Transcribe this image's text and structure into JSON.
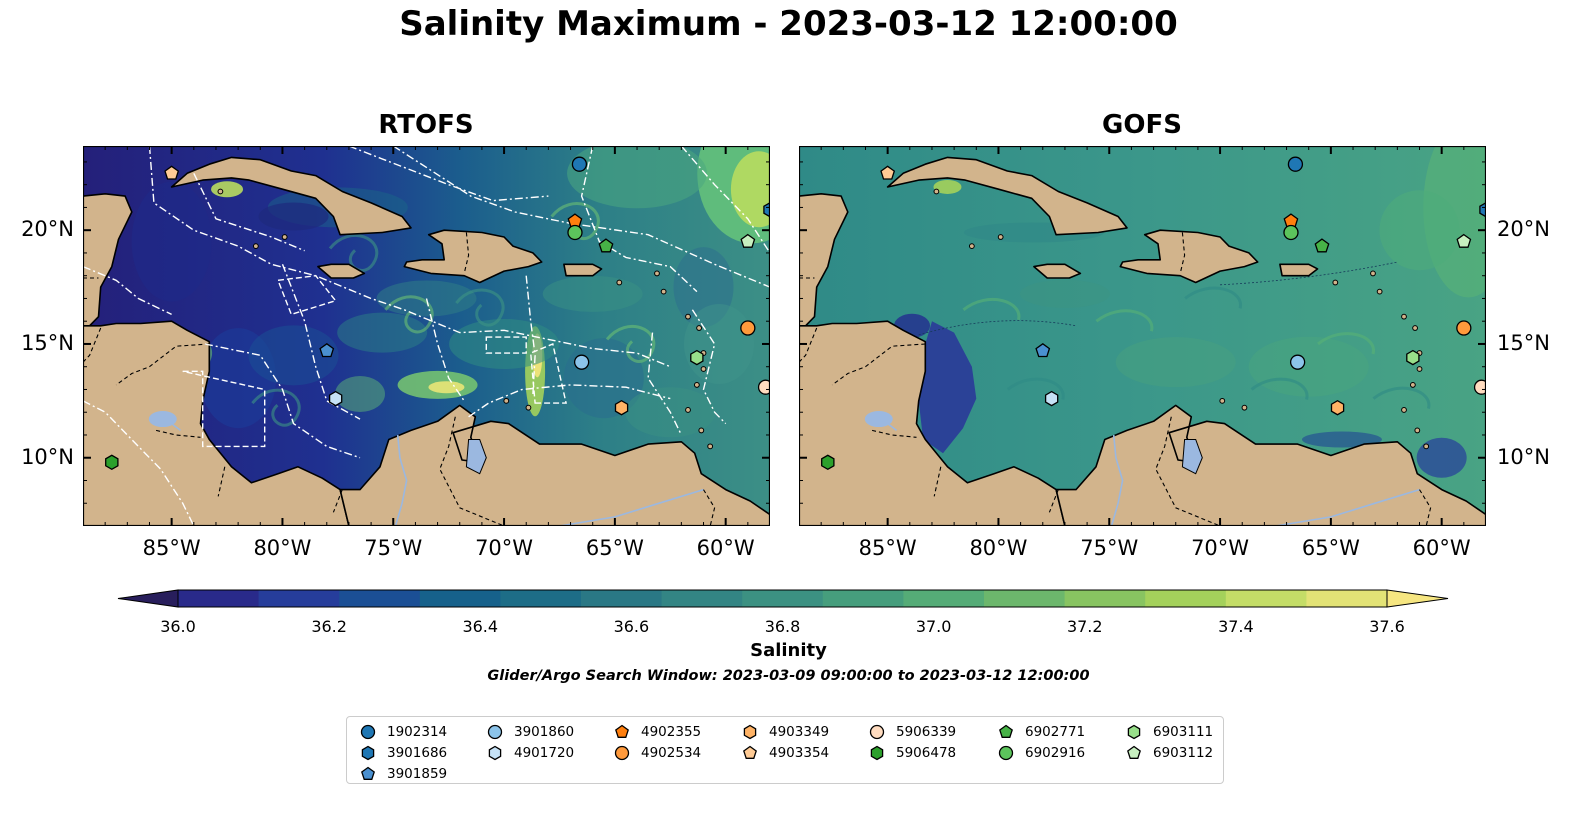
{
  "title": "Salinity Maximum - 2023-03-12 12:00:00",
  "panels": [
    {
      "id": "rtofs",
      "title": "RTOFS"
    },
    {
      "id": "gofs",
      "title": "GOFS"
    }
  ],
  "map": {
    "lon_range": [
      -89,
      -58
    ],
    "lat_range": [
      7,
      23.7
    ],
    "lon_ticks": [
      "85°W",
      "80°W",
      "75°W",
      "70°W",
      "65°W",
      "60°W"
    ],
    "lat_ticks": [
      "20°N",
      "15°N",
      "10°N"
    ],
    "colors": {
      "land": "#d2b48c",
      "coast": "#000000",
      "lake": "#9bb8e0",
      "eez": "#ffffff"
    }
  },
  "colorbar": {
    "label": "Salinity",
    "ticks": [
      "36.0",
      "36.2",
      "36.4",
      "36.6",
      "36.8",
      "37.0",
      "37.2",
      "37.4",
      "37.6"
    ],
    "range": [
      36.0,
      37.6
    ],
    "colors": [
      "#281e5c",
      "#292a8a",
      "#263d9b",
      "#1b4f95",
      "#16618b",
      "#1d6d87",
      "#2a7885",
      "#338584",
      "#3c9182",
      "#469e7d",
      "#55ac77",
      "#6cb76c",
      "#88c461",
      "#a4d15b",
      "#c4dd67",
      "#e3e376",
      "#f6e681"
    ]
  },
  "search_window": "Glider/Argo Search Window: 2023-03-09 09:00:00 to 2023-03-12 12:00:00",
  "floats": [
    {
      "id": "1902314",
      "marker": "circle",
      "color": "#1f77b4",
      "lon": -66.6,
      "lat": 22.9
    },
    {
      "id": "3901686",
      "marker": "hexagon",
      "color": "#1f77b4",
      "lon": -58.0,
      "lat": 20.9
    },
    {
      "id": "3901859",
      "marker": "pentagon",
      "color": "#4a90d0",
      "lon": -78.0,
      "lat": 14.7
    },
    {
      "id": "3901860",
      "marker": "circle",
      "color": "#8cc4ea",
      "lon": -66.5,
      "lat": 14.2
    },
    {
      "id": "4901720",
      "marker": "hexagon",
      "color": "#c6e2f6",
      "lon": -77.6,
      "lat": 12.6
    },
    {
      "id": "4902355",
      "marker": "pentagon",
      "color": "#ff7f0e",
      "lon": -66.8,
      "lat": 20.4
    },
    {
      "id": "4902534",
      "marker": "circle",
      "color": "#ff9a3c",
      "lon": -59.0,
      "lat": 15.7
    },
    {
      "id": "4903349",
      "marker": "hexagon",
      "color": "#ffb366",
      "lon": -64.7,
      "lat": 12.2
    },
    {
      "id": "4903354",
      "marker": "pentagon",
      "color": "#ffcb95",
      "lon": -85.0,
      "lat": 22.5
    },
    {
      "id": "5906339",
      "marker": "circle",
      "color": "#ffdcc0",
      "lon": -58.2,
      "lat": 13.1
    },
    {
      "id": "5906478",
      "marker": "hexagon",
      "color": "#2ca02c",
      "lon": -87.7,
      "lat": 9.8
    },
    {
      "id": "6902771",
      "marker": "pentagon",
      "color": "#47b347",
      "lon": -65.4,
      "lat": 19.3
    },
    {
      "id": "6902916",
      "marker": "circle",
      "color": "#5cc45c",
      "lon": -66.8,
      "lat": 19.9
    },
    {
      "id": "6903111",
      "marker": "hexagon",
      "color": "#98df8a",
      "lon": -61.3,
      "lat": 14.4
    },
    {
      "id": "6903112",
      "marker": "pentagon",
      "color": "#c7f0c0",
      "lon": -59.0,
      "lat": 19.5
    }
  ]
}
